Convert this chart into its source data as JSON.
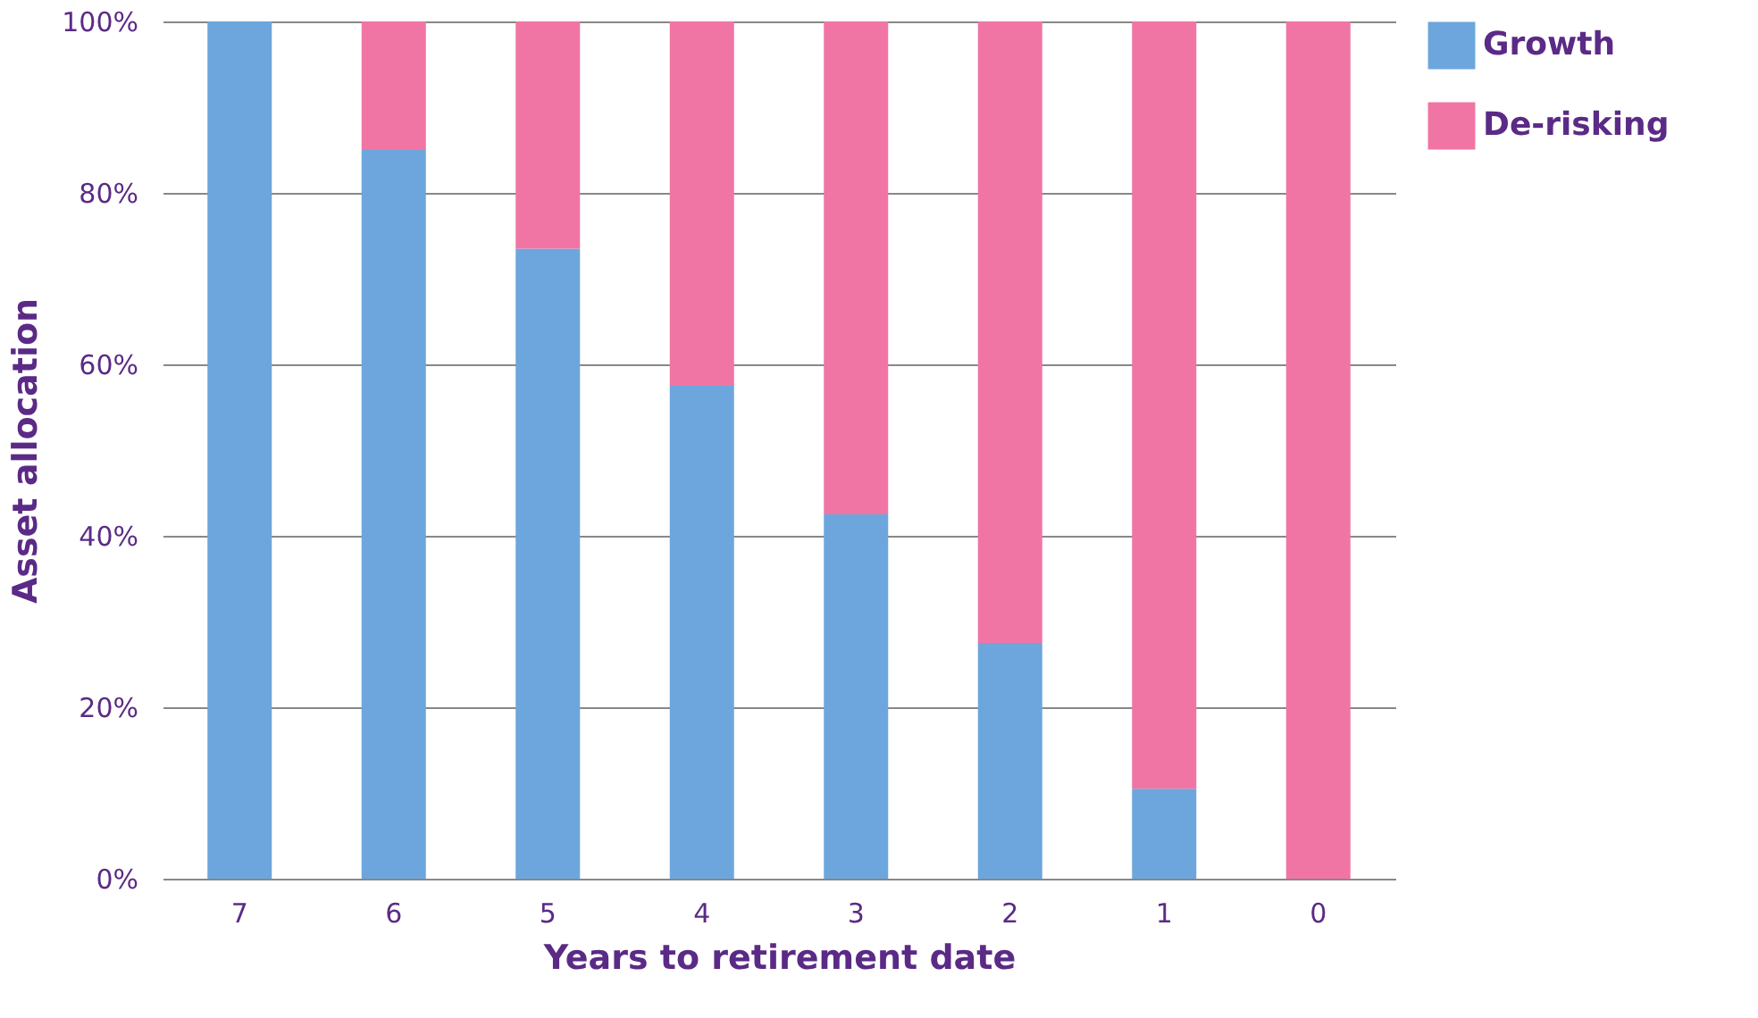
{
  "chart_data": {
    "type": "bar",
    "stacked": true,
    "xlabel": "Years to retirement date",
    "ylabel": "Asset allocation",
    "categories": [
      "7",
      "6",
      "5",
      "4",
      "3",
      "2",
      "1",
      "0"
    ],
    "series": [
      {
        "name": "Growth",
        "color": "#6ca6dc",
        "values": [
          100,
          85,
          73.5,
          57.5,
          42.5,
          27.5,
          10.5,
          0
        ]
      },
      {
        "name": "De-risking",
        "color": "#f075a5",
        "values": [
          0,
          15,
          26.5,
          42.5,
          57.5,
          72.5,
          89.5,
          100
        ]
      }
    ],
    "ylim": [
      0,
      100
    ],
    "yticks": [
      {
        "value": 0,
        "label": "0%"
      },
      {
        "value": 20,
        "label": "20%"
      },
      {
        "value": 40,
        "label": "40%"
      },
      {
        "value": 60,
        "label": "60%"
      },
      {
        "value": 80,
        "label": "80%"
      },
      {
        "value": 100,
        "label": "100%"
      }
    ],
    "grid": "y",
    "legend": "right"
  }
}
